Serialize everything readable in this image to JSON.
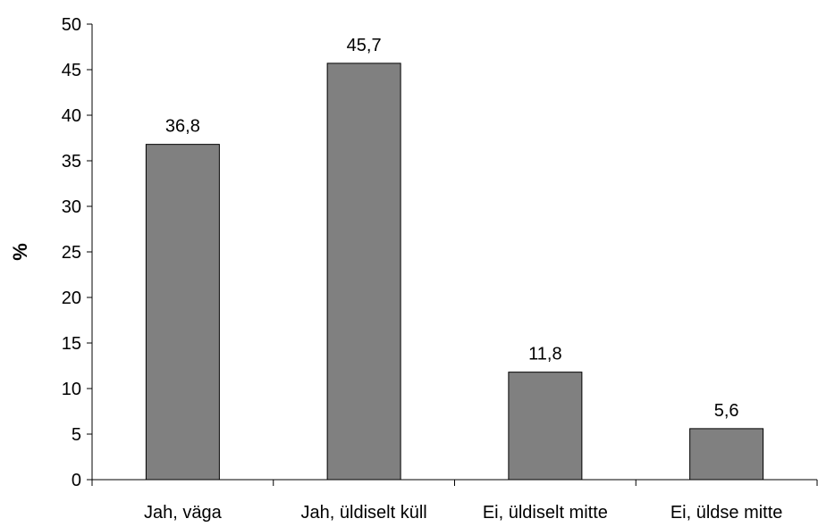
{
  "chart_data": {
    "type": "bar",
    "categories": [
      "Jah, väga",
      "Jah, üldiselt küll",
      "Ei, üldiselt mitte",
      "Ei, üldse mitte"
    ],
    "values": [
      36.8,
      45.7,
      11.8,
      5.6
    ],
    "data_labels": [
      "36,8",
      "45,7",
      "11,8",
      "5,6"
    ],
    "title": "",
    "xlabel": "",
    "ylabel": "%",
    "ylim": [
      0,
      50
    ],
    "yticks": [
      0,
      5,
      10,
      15,
      20,
      25,
      30,
      35,
      40,
      45,
      50
    ],
    "grid": false,
    "legend": "none",
    "colors": {
      "bar": "#808080",
      "bar_stroke": "#000000",
      "axis": "#000000"
    }
  }
}
